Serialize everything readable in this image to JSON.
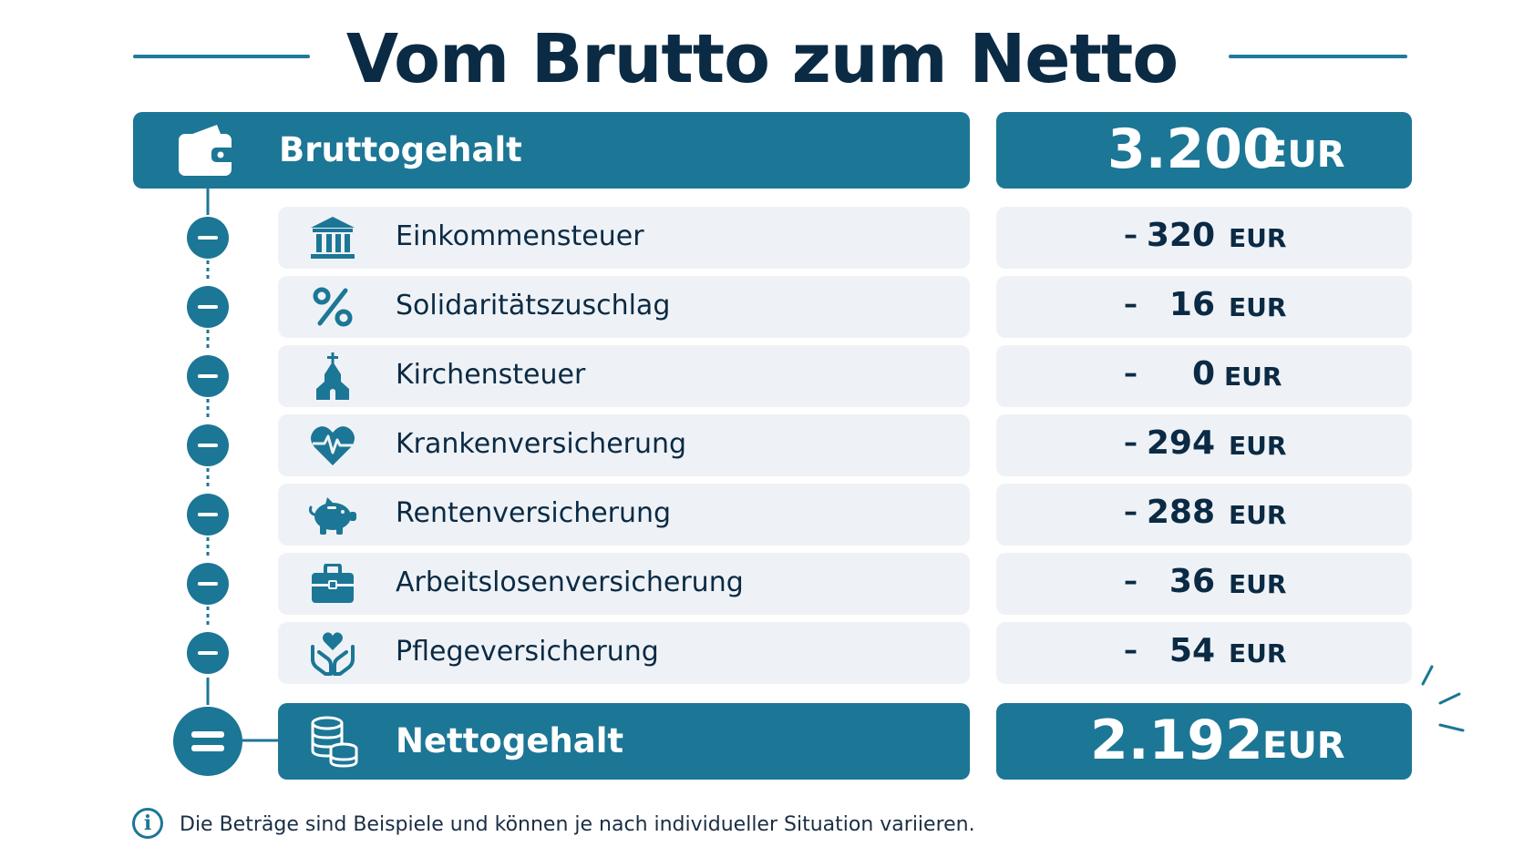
{
  "title": "Vom Brutto zum Netto",
  "gross": {
    "label": "Bruttogehalt",
    "amount": "3.200",
    "unit": "EUR",
    "icon": "wallet-icon"
  },
  "deductions": [
    {
      "label": "Einkommensteuer",
      "sign": "–",
      "amount": "320",
      "unit": "EUR",
      "icon": "bank-icon"
    },
    {
      "label": "Solidaritätszuschlag",
      "sign": "–",
      "amount": "16",
      "unit": "EUR",
      "icon": "percent-icon"
    },
    {
      "label": "Kirchensteuer",
      "sign": "–",
      "amount": "0",
      "unit": "EUR",
      "icon": "church-icon"
    },
    {
      "label": "Krankenversicherung",
      "sign": "–",
      "amount": "294",
      "unit": "EUR",
      "icon": "heart-pulse-icon"
    },
    {
      "label": "Rentenversicherung",
      "sign": "–",
      "amount": "288",
      "unit": "EUR",
      "icon": "piggy-bank-icon"
    },
    {
      "label": "Arbeitslosenversicherung",
      "sign": "–",
      "amount": "36",
      "unit": "EUR",
      "icon": "briefcase-icon"
    },
    {
      "label": "Pflegeversicherung",
      "sign": "–",
      "amount": "54",
      "unit": "EUR",
      "icon": "care-hands-icon"
    }
  ],
  "net": {
    "label": "Nettogehalt",
    "amount": "2.192",
    "unit": "EUR",
    "icon": "coins-icon"
  },
  "note": "Die Beträge sind Beispiele und können je nach individueller Situation variieren.",
  "colors": {
    "primary": "#1c7696",
    "dark": "#0b2a44",
    "row": "#eef2f6"
  }
}
